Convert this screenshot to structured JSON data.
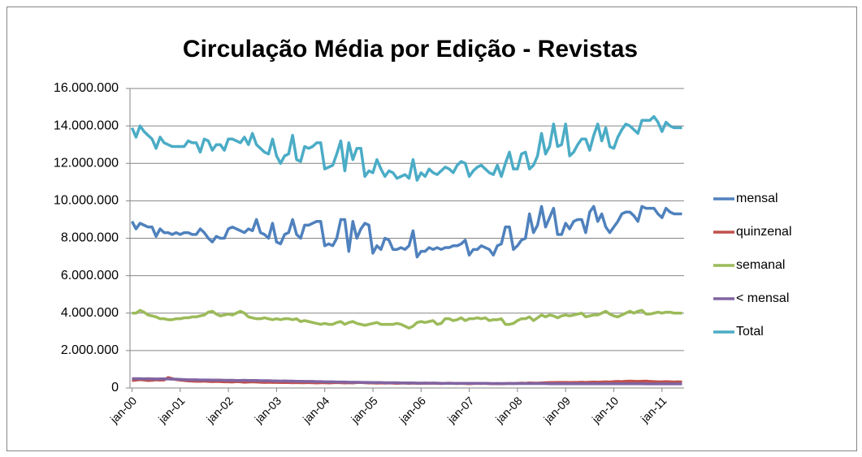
{
  "chart_data": {
    "type": "line",
    "title": "Circulação Média por Edição - Revistas",
    "categories": [
      "jan-00",
      null,
      null,
      null,
      null,
      null,
      null,
      null,
      null,
      null,
      null,
      null,
      "jan-01",
      null,
      null,
      null,
      null,
      null,
      null,
      null,
      null,
      null,
      null,
      null,
      "jan-02",
      null,
      null,
      null,
      null,
      null,
      null,
      null,
      null,
      null,
      null,
      null,
      "jan-03",
      null,
      null,
      null,
      null,
      null,
      null,
      null,
      null,
      null,
      null,
      null,
      "jan-04",
      null,
      null,
      null,
      null,
      null,
      null,
      null,
      null,
      null,
      null,
      null,
      "jan-05",
      null,
      null,
      null,
      null,
      null,
      null,
      null,
      null,
      null,
      null,
      null,
      "jan-06",
      null,
      null,
      null,
      null,
      null,
      null,
      null,
      null,
      null,
      null,
      null,
      "jan-07",
      null,
      null,
      null,
      null,
      null,
      null,
      null,
      null,
      null,
      null,
      null,
      "jan-08",
      null,
      null,
      null,
      null,
      null,
      null,
      null,
      null,
      null,
      null,
      null,
      "jan-09",
      null,
      null,
      null,
      null,
      null,
      null,
      null,
      null,
      null,
      null,
      null,
      "jan-10",
      null,
      null,
      null,
      null,
      null,
      null,
      null,
      null,
      null,
      null,
      null,
      "jan-11",
      null,
      null,
      null,
      null,
      null
    ],
    "ylim": [
      0,
      16000000
    ],
    "yticks": [
      0,
      {
        "value": 2000000,
        "label": "2.000.000"
      },
      {
        "value": 4000000,
        "label": "4.000.000"
      },
      {
        "value": 6000000,
        "label": "6.000.000"
      },
      {
        "value": 8000000,
        "label": "8.000.000"
      },
      {
        "value": 10000000,
        "label": "10.000.000"
      },
      {
        "value": 12000000,
        "label": "12.000.000"
      },
      {
        "value": 14000000,
        "label": "14.000.000"
      },
      {
        "value": 16000000,
        "label": "16.000.000"
      }
    ],
    "grid": true,
    "legend": "right",
    "series": [
      {
        "name": "mensal",
        "color": "#4f81bd",
        "values": [
          8900000,
          8500000,
          8800000,
          8700000,
          8600000,
          8600000,
          8100000,
          8500000,
          8300000,
          8300000,
          8200000,
          8300000,
          8200000,
          8300000,
          8300000,
          8200000,
          8200000,
          8500000,
          8300000,
          8000000,
          7800000,
          8100000,
          8000000,
          8000000,
          8500000,
          8600000,
          8500000,
          8400000,
          8300000,
          8500000,
          8400000,
          9000000,
          8300000,
          8200000,
          8000000,
          8800000,
          7800000,
          7700000,
          8200000,
          8300000,
          9000000,
          8200000,
          8000000,
          8700000,
          8700000,
          8800000,
          8900000,
          8900000,
          7600000,
          7700000,
          7600000,
          8000000,
          9000000,
          9000000,
          7300000,
          8900000,
          8000000,
          8500000,
          8800000,
          8700000,
          7200000,
          7600000,
          7400000,
          8000000,
          7900000,
          7400000,
          7400000,
          7500000,
          7400000,
          7600000,
          8400000,
          7000000,
          7300000,
          7300000,
          7500000,
          7400000,
          7500000,
          7400000,
          7500000,
          7500000,
          7600000,
          7600000,
          7700000,
          7900000,
          7100000,
          7400000,
          7400000,
          7600000,
          7500000,
          7400000,
          7100000,
          7600000,
          7700000,
          8600000,
          8600000,
          7400000,
          7600000,
          7900000,
          8000000,
          9300000,
          8300000,
          8700000,
          9700000,
          8600000,
          9100000,
          9600000,
          8200000,
          8200000,
          8800000,
          8500000,
          8900000,
          9000000,
          9000000,
          8300000,
          9400000,
          9700000,
          8900000,
          9300000,
          8600000,
          8300000,
          8600000,
          8900000,
          9300000,
          9400000,
          9400000,
          9200000,
          8900000,
          9700000,
          9600000,
          9600000,
          9600000,
          9300000,
          9100000,
          9600000,
          9400000,
          9300000,
          9300000,
          9300000
        ]
      },
      {
        "name": "quinzenal",
        "color": "#c0504d",
        "values": [
          400000,
          420000,
          450000,
          430000,
          400000,
          410000,
          440000,
          420000,
          430000,
          560000,
          500000,
          450000,
          420000,
          400000,
          380000,
          370000,
          360000,
          360000,
          370000,
          350000,
          340000,
          350000,
          340000,
          330000,
          330000,
          320000,
          340000,
          330000,
          310000,
          320000,
          330000,
          320000,
          310000,
          300000,
          310000,
          300000,
          300000,
          290000,
          300000,
          290000,
          280000,
          290000,
          280000,
          280000,
          290000,
          280000,
          270000,
          280000,
          280000,
          270000,
          280000,
          290000,
          280000,
          270000,
          280000,
          270000,
          290000,
          300000,
          280000,
          270000,
          270000,
          260000,
          270000,
          260000,
          270000,
          260000,
          250000,
          260000,
          260000,
          250000,
          260000,
          250000,
          250000,
          260000,
          250000,
          260000,
          250000,
          240000,
          250000,
          260000,
          250000,
          240000,
          250000,
          240000,
          230000,
          240000,
          250000,
          240000,
          250000,
          240000,
          230000,
          240000,
          230000,
          240000,
          250000,
          240000,
          250000,
          260000,
          250000,
          270000,
          260000,
          260000,
          270000,
          280000,
          290000,
          290000,
          300000,
          300000,
          300000,
          290000,
          300000,
          300000,
          310000,
          300000,
          310000,
          320000,
          310000,
          320000,
          330000,
          320000,
          340000,
          350000,
          340000,
          360000,
          370000,
          360000,
          350000,
          360000,
          370000,
          350000,
          340000,
          330000,
          330000,
          340000,
          330000,
          320000,
          330000,
          320000
        ]
      },
      {
        "name": "semanal",
        "color": "#9bbb59",
        "values": [
          4000000,
          4000000,
          4150000,
          4050000,
          3900000,
          3850000,
          3800000,
          3700000,
          3700000,
          3650000,
          3650000,
          3700000,
          3700000,
          3750000,
          3750000,
          3800000,
          3800000,
          3850000,
          3900000,
          4050000,
          4100000,
          3950000,
          3850000,
          3900000,
          3950000,
          3900000,
          4000000,
          4100000,
          4000000,
          3800000,
          3750000,
          3700000,
          3700000,
          3750000,
          3700000,
          3650000,
          3700000,
          3650000,
          3700000,
          3700000,
          3650000,
          3700000,
          3550000,
          3600000,
          3550000,
          3500000,
          3450000,
          3400000,
          3450000,
          3400000,
          3400000,
          3500000,
          3550000,
          3400000,
          3500000,
          3550000,
          3450000,
          3400000,
          3350000,
          3400000,
          3450000,
          3500000,
          3400000,
          3400000,
          3400000,
          3400000,
          3450000,
          3400000,
          3300000,
          3200000,
          3300000,
          3500000,
          3550000,
          3500000,
          3550000,
          3600000,
          3400000,
          3450000,
          3700000,
          3700000,
          3600000,
          3650000,
          3750000,
          3600000,
          3700000,
          3700000,
          3750000,
          3700000,
          3750000,
          3600000,
          3650000,
          3650000,
          3700000,
          3400000,
          3400000,
          3450000,
          3600000,
          3700000,
          3700000,
          3800000,
          3600000,
          3750000,
          3900000,
          3800000,
          3900000,
          3850000,
          3750000,
          3850000,
          3900000,
          3850000,
          3900000,
          3950000,
          4000000,
          3800000,
          3850000,
          3900000,
          3900000,
          4000000,
          4100000,
          3950000,
          3850000,
          3800000,
          3900000,
          4000000,
          4100000,
          4000000,
          4100000,
          4150000,
          3950000,
          3950000,
          4000000,
          4050000,
          4000000,
          4050000,
          4050000,
          4000000,
          4000000,
          4000000
        ]
      },
      {
        "name": "< mensal",
        "color": "#8064a2",
        "values": [
          500000,
          500000,
          500000,
          490000,
          500000,
          490000,
          480000,
          490000,
          490000,
          480000,
          470000,
          470000,
          460000,
          450000,
          440000,
          440000,
          440000,
          430000,
          430000,
          430000,
          420000,
          420000,
          420000,
          410000,
          410000,
          410000,
          400000,
          400000,
          410000,
          400000,
          400000,
          400000,
          390000,
          390000,
          390000,
          380000,
          380000,
          370000,
          380000,
          370000,
          370000,
          360000,
          360000,
          350000,
          350000,
          350000,
          340000,
          340000,
          330000,
          330000,
          330000,
          320000,
          320000,
          320000,
          310000,
          310000,
          310000,
          300000,
          300000,
          300000,
          290000,
          290000,
          290000,
          280000,
          280000,
          280000,
          280000,
          270000,
          270000,
          270000,
          270000,
          260000,
          260000,
          260000,
          260000,
          260000,
          260000,
          250000,
          250000,
          250000,
          250000,
          250000,
          250000,
          250000,
          250000,
          250000,
          250000,
          250000,
          250000,
          240000,
          240000,
          240000,
          240000,
          240000,
          240000,
          240000,
          240000,
          240000,
          240000,
          240000,
          240000,
          240000,
          240000,
          240000,
          230000,
          230000,
          230000,
          230000,
          230000,
          230000,
          230000,
          230000,
          230000,
          230000,
          230000,
          230000,
          230000,
          230000,
          230000,
          230000,
          230000,
          230000,
          230000,
          230000,
          230000,
          230000,
          230000,
          230000,
          220000,
          220000,
          220000,
          220000,
          220000,
          220000,
          220000,
          220000,
          220000,
          220000
        ]
      },
      {
        "name": "Total",
        "color": "#4bacc6",
        "values": [
          13900000,
          13400000,
          14000000,
          13700000,
          13500000,
          13300000,
          12800000,
          13400000,
          13100000,
          13000000,
          12900000,
          12900000,
          12900000,
          12900000,
          13200000,
          13100000,
          13100000,
          12600000,
          13300000,
          13200000,
          12700000,
          13000000,
          13000000,
          12700000,
          13300000,
          13300000,
          13200000,
          13100000,
          13400000,
          13000000,
          13600000,
          13000000,
          12800000,
          12600000,
          12500000,
          13300000,
          12400000,
          12000000,
          12400000,
          12500000,
          13500000,
          12200000,
          12100000,
          12900000,
          12800000,
          12900000,
          13100000,
          13100000,
          11700000,
          11800000,
          11900000,
          12500000,
          13200000,
          11600000,
          13100000,
          12200000,
          12800000,
          12800000,
          11300000,
          11600000,
          11500000,
          12200000,
          11700000,
          11300000,
          11600000,
          11500000,
          11200000,
          11300000,
          11400000,
          11200000,
          12200000,
          11100000,
          11500000,
          11300000,
          11700000,
          11500000,
          11400000,
          11600000,
          11800000,
          11700000,
          11500000,
          11900000,
          12100000,
          12000000,
          11300000,
          11600000,
          11800000,
          11900000,
          11700000,
          11500000,
          11400000,
          11900000,
          11300000,
          12000000,
          12600000,
          11700000,
          11700000,
          12500000,
          12600000,
          11700000,
          11900000,
          12400000,
          13600000,
          12500000,
          12900000,
          14100000,
          12900000,
          13000000,
          14100000,
          12400000,
          12600000,
          13000000,
          13300000,
          13300000,
          12700000,
          13500000,
          14100000,
          13200000,
          13900000,
          12900000,
          12800000,
          13400000,
          13800000,
          14100000,
          14000000,
          13800000,
          13600000,
          14300000,
          14300000,
          14300000,
          14500000,
          14200000,
          13700000,
          14200000,
          14000000,
          13900000,
          13900000,
          13900000
        ]
      }
    ]
  }
}
